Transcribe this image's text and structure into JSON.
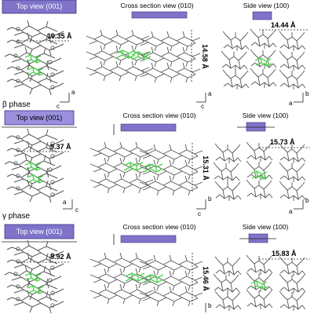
{
  "figure": {
    "rows": [
      {
        "phase": "",
        "panels": [
          {
            "view": "Top view (001)",
            "distance": "10.35 Å",
            "axis1": "a",
            "axis2": "c"
          },
          {
            "view": "Cross section view (010)",
            "distance": "14.58 Å",
            "axis1": "c",
            "axis2": "a"
          },
          {
            "view": "Side view (100)",
            "distance": "14.44 Å",
            "axis1": "b",
            "axis2": "a"
          }
        ]
      },
      {
        "phase": "β phase",
        "panels": [
          {
            "view": "Top view (001)",
            "distance": "9.37 Å",
            "axis1": "a",
            "axis2": "c"
          },
          {
            "view": "Cross section view (010)",
            "distance": "15.31 Å",
            "axis1": "b",
            "axis2": "c"
          },
          {
            "view": "Side view (100)",
            "distance": "15.73 Å",
            "axis1": "b",
            "axis2": "a"
          }
        ]
      },
      {
        "phase": "γ phase",
        "panels": [
          {
            "view": "Top view (001)",
            "distance": "8.92 Å",
            "axis1": "",
            "axis2": ""
          },
          {
            "view": "Cross section view (010)",
            "distance": "15.46 Å",
            "axis1": "b",
            "axis2": ""
          },
          {
            "view": "Side view (100)",
            "distance": "15.83 Å",
            "axis1": "",
            "axis2": ""
          }
        ]
      }
    ]
  },
  "colors": {
    "banner_fill": "#7f74c9",
    "banner_fill_light": "#9a90de",
    "banner_stroke": "#3c3480",
    "molecule_dark": "#555555",
    "molecule_core": "#4fd34f",
    "arrow": "#222222"
  }
}
